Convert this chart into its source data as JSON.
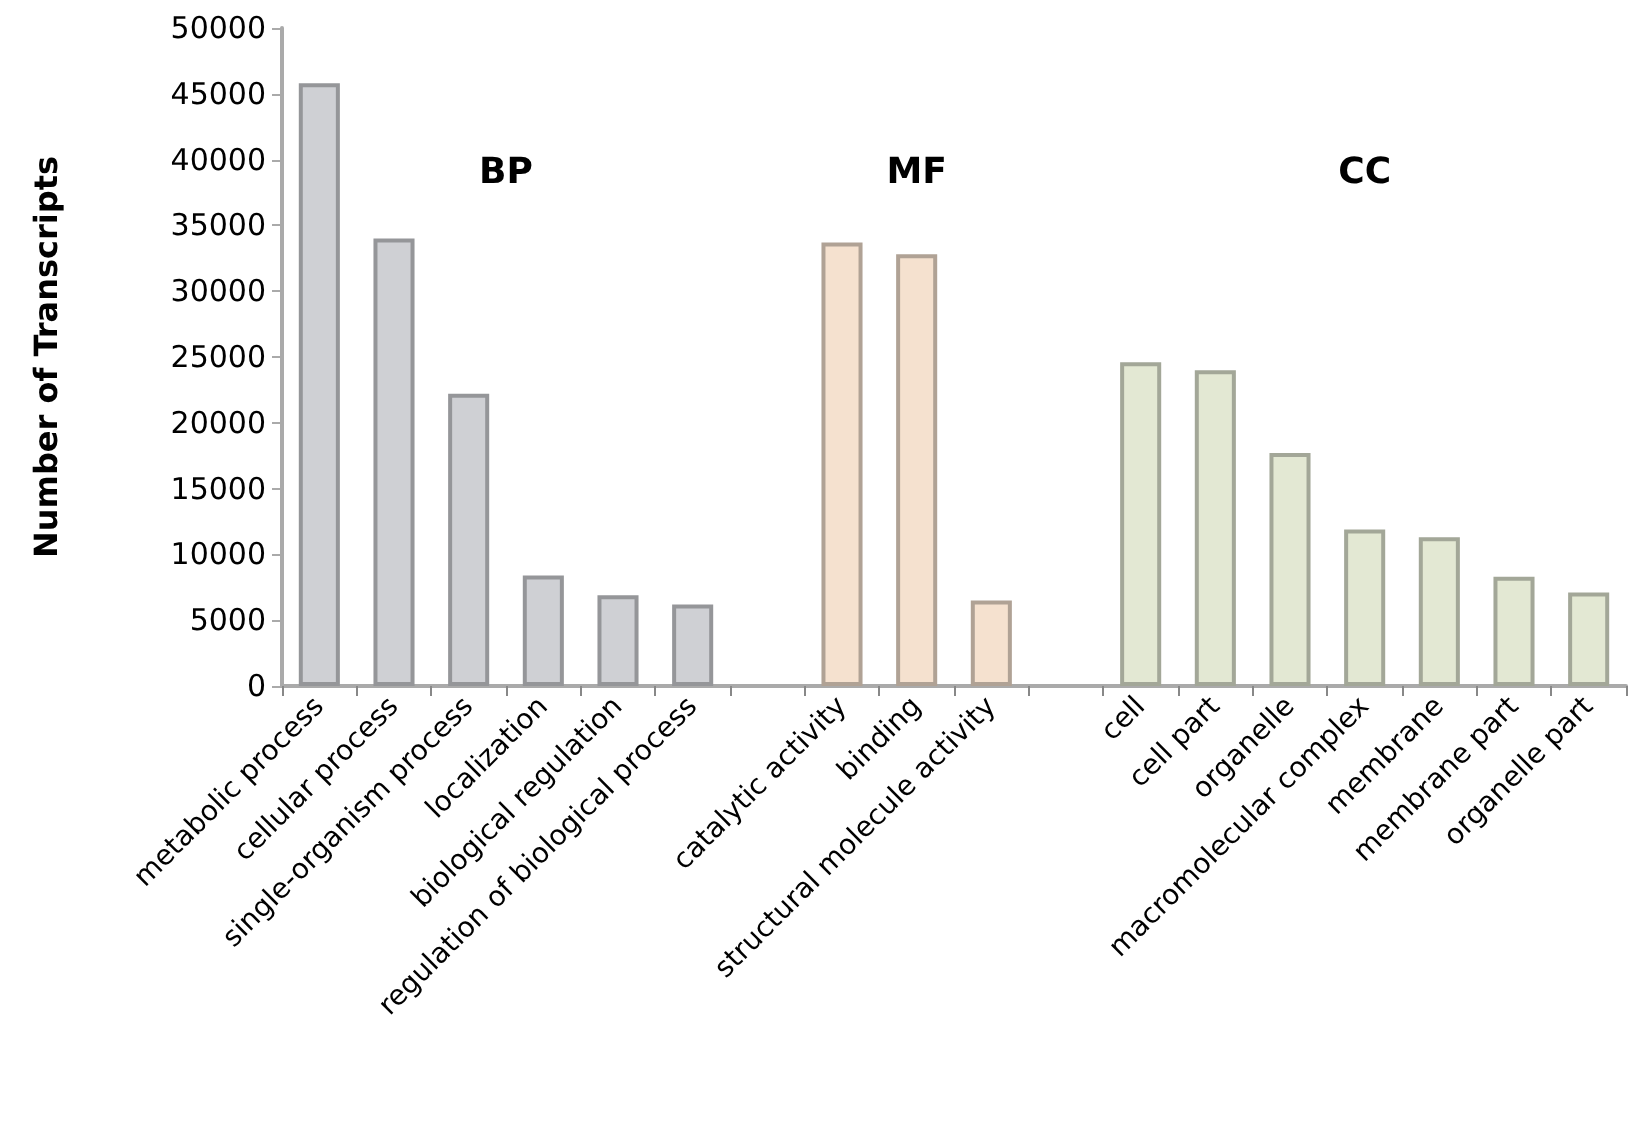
{
  "chart_data": {
    "type": "bar",
    "ylabel": "Number of Transcripts",
    "categories": [
      "metabolic process",
      "cellular process",
      "single-organism process",
      "localization",
      "biological regulation",
      "regulation of biological process",
      null,
      "catalytic activity",
      "binding",
      "structural molecule activity",
      null,
      "cell",
      "cell part",
      "organelle",
      "macromolecular complex",
      "membrane",
      "membrane part",
      "organelle part"
    ],
    "values": [
      45800,
      34000,
      22200,
      8400,
      6900,
      6200,
      null,
      33700,
      32800,
      6500,
      null,
      24600,
      24000,
      17700,
      11900,
      11300,
      8300,
      7100
    ],
    "colors": [
      "#cfd0d4",
      "#cfd0d4",
      "#cfd0d4",
      "#cfd0d4",
      "#cfd0d4",
      "#cfd0d4",
      null,
      "#f5e1cf",
      "#f5e1cf",
      "#f5e1cf",
      null,
      "#e3e8d3",
      "#e3e8d3",
      "#e3e8d3",
      "#e3e8d3",
      "#e3e8d3",
      "#e3e8d3",
      "#e3e8d3"
    ],
    "annotations": [
      "BP",
      "MF",
      "CC"
    ],
    "ylim": [
      0,
      50000
    ],
    "yticks": [
      0,
      5000,
      10000,
      15000,
      20000,
      25000,
      30000,
      35000,
      40000,
      45000,
      50000
    ],
    "grid": false
  }
}
